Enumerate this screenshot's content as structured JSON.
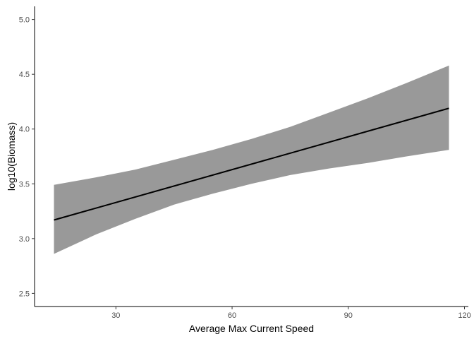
{
  "chart_data": {
    "type": "line",
    "title": "",
    "xlabel": "Average Max Current Speed",
    "ylabel": "log10(Biomass)",
    "xlim": [
      9,
      121
    ],
    "ylim": [
      2.38,
      5.12
    ],
    "grid": false,
    "legend": "none",
    "x_ticks": [
      30,
      60,
      90,
      120
    ],
    "x_tick_labels": [
      "30",
      "60",
      "90",
      "120"
    ],
    "y_ticks": [
      2.5,
      3.0,
      3.5,
      4.0,
      4.5,
      5.0
    ],
    "y_tick_labels": [
      "2.5",
      "3.0",
      "3.5",
      "4.0",
      "4.5",
      "5.0"
    ],
    "series": [
      {
        "name": "fit",
        "x": [
          14,
          116
        ],
        "y": [
          3.17,
          4.19
        ]
      }
    ],
    "confidence_band": {
      "x": [
        14,
        25,
        35,
        45,
        55,
        65,
        75,
        85,
        95,
        105,
        116
      ],
      "lower": [
        2.86,
        3.04,
        3.18,
        3.31,
        3.41,
        3.5,
        3.58,
        3.64,
        3.69,
        3.75,
        3.81
      ],
      "upper": [
        3.49,
        3.56,
        3.63,
        3.72,
        3.81,
        3.91,
        4.02,
        4.15,
        4.28,
        4.42,
        4.58
      ]
    },
    "colors": {
      "band": "#999999",
      "line": "#000000",
      "axis": "#000000",
      "tick_text": "#4d4d4d"
    }
  }
}
